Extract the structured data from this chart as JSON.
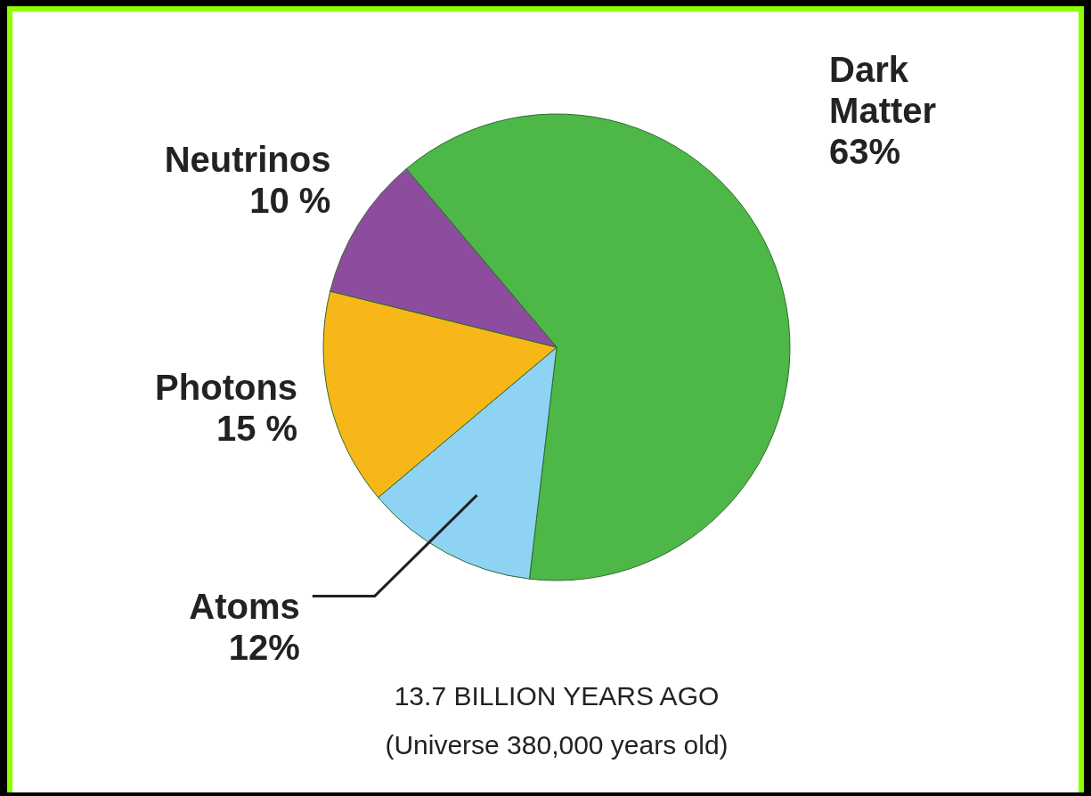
{
  "chart_data": {
    "type": "pie",
    "title": "13.7 BILLION YEARS AGO",
    "subtitle": "(Universe 380,000 years old)",
    "categories": [
      "Dark Matter",
      "Atoms",
      "Photons",
      "Neutrinos"
    ],
    "values": [
      63,
      12,
      15,
      10
    ],
    "colors": [
      "#4db848",
      "#8fd3f4",
      "#f7b718",
      "#8e4c9f"
    ],
    "value_labels": [
      "63%",
      "12%",
      "15 %",
      "10 %"
    ]
  }
}
